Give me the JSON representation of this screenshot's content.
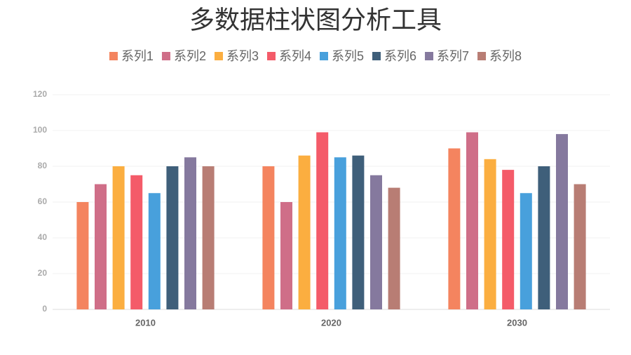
{
  "chart_data": {
    "type": "bar",
    "title": "多数据柱状图分析工具",
    "categories": [
      "2010",
      "2020",
      "2030"
    ],
    "series": [
      {
        "name": "系列1",
        "color": "#f4845f",
        "values": [
          60,
          80,
          90
        ]
      },
      {
        "name": "系列2",
        "color": "#cf6e88",
        "values": [
          70,
          60,
          99
        ]
      },
      {
        "name": "系列3",
        "color": "#fbae40",
        "values": [
          80,
          86,
          84
        ]
      },
      {
        "name": "系列4",
        "color": "#f45b69",
        "values": [
          75,
          99,
          78
        ]
      },
      {
        "name": "系列5",
        "color": "#48a0dc",
        "values": [
          65,
          85,
          65
        ]
      },
      {
        "name": "系列6",
        "color": "#3f5f7a",
        "values": [
          80,
          86,
          80
        ]
      },
      {
        "name": "系列7",
        "color": "#85799e",
        "values": [
          85,
          75,
          98
        ]
      },
      {
        "name": "系列8",
        "color": "#b87d74",
        "values": [
          80,
          68,
          70
        ]
      }
    ],
    "ylim": [
      0,
      120
    ],
    "yticks": [
      0,
      20,
      40,
      60,
      80,
      100,
      120
    ],
    "grid": true,
    "legend": "top"
  }
}
